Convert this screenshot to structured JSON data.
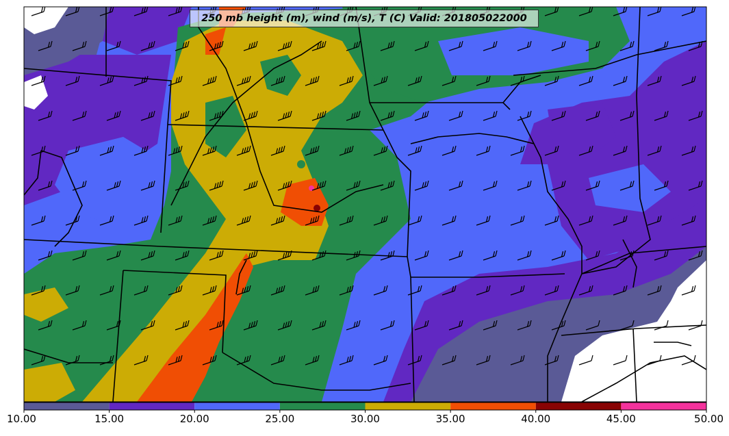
{
  "title": "250 mb height (m), wind (m/s), T (C) Valid: 201805022000",
  "colorbar": {
    "tick_labels": [
      "10.00",
      "15.00",
      "20.00",
      "25.00",
      "30.00",
      "35.00",
      "40.00",
      "45.00",
      "50.00"
    ],
    "bins": [
      {
        "range": [
          10,
          15
        ],
        "color": "#5a5a96"
      },
      {
        "range": [
          15,
          20
        ],
        "color": "#6128c2"
      },
      {
        "range": [
          20,
          25
        ],
        "color": "#5068fa"
      },
      {
        "range": [
          25,
          30
        ],
        "color": "#258a4c"
      },
      {
        "range": [
          30,
          35
        ],
        "color": "#ccac05"
      },
      {
        "range": [
          35,
          40
        ],
        "color": "#f04e04"
      },
      {
        "range": [
          40,
          45
        ],
        "color": "#880303"
      },
      {
        "range": [
          45,
          50
        ],
        "color": "#f4329c"
      }
    ]
  },
  "colors": {
    "below_10": "#ffffff",
    "state_borders": "#000000",
    "wind_barbs": "#000000"
  },
  "wind_barb_icon": "wind-barb-icon"
}
